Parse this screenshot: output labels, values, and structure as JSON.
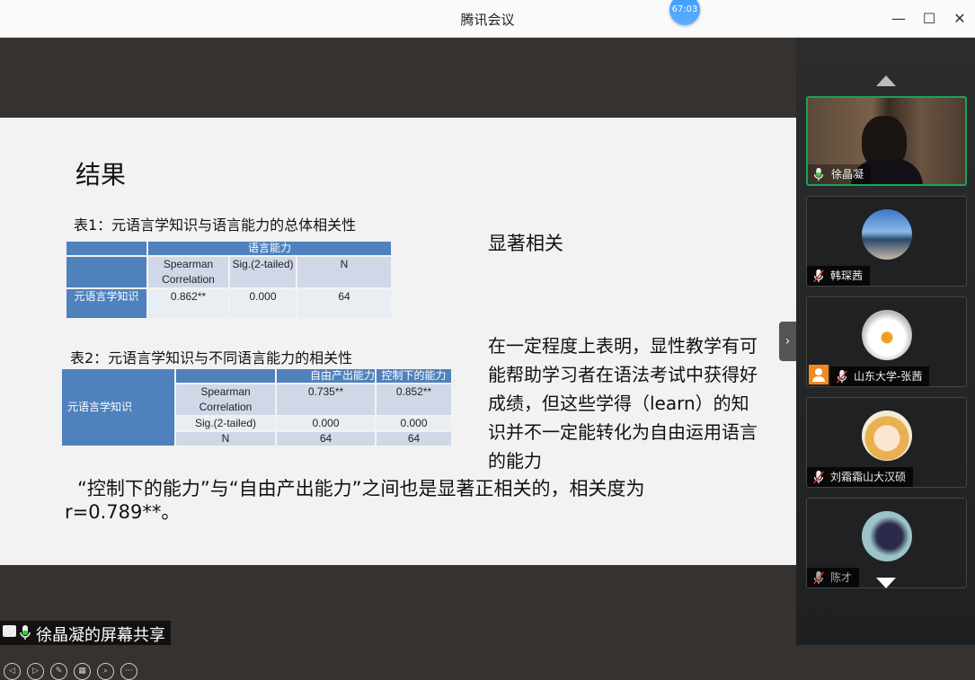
{
  "window": {
    "title": "腾讯会议",
    "timer": "67:03",
    "controls": {
      "minimize": "—",
      "maximize": "☐",
      "close": "✕"
    }
  },
  "slide": {
    "heading": "结果",
    "table1": {
      "caption": "表1：元语言学知识与语言能力的总体相关性",
      "group_header": "语言能力",
      "columns": [
        "Spearman Correlation",
        "Sig.(2-tailed)",
        "N"
      ],
      "row_label": "元语言学知识",
      "values": [
        "0.862**",
        "0.000",
        "64"
      ]
    },
    "table2": {
      "caption": "表2：元语言学知识与不同语言能力的相关性",
      "row_label": "元语言学知识",
      "columns": [
        "自由产出能力",
        "控制下的能力"
      ],
      "rows": [
        {
          "label": "Spearman Correlation",
          "values": [
            "0.735**",
            "0.852**"
          ]
        },
        {
          "label": "Sig.(2-tailed)",
          "values": [
            "0.000",
            "0.000"
          ]
        },
        {
          "label": "N",
          "values": [
            "64",
            "64"
          ]
        }
      ]
    },
    "note1": "显著相关",
    "note2": "在一定程度上表明，显性教学有可能帮助学习者在语法考试中获得好成绩，但这些学得（learn）的知识并不一定能转化为自由运用语言的能力",
    "conclusion_line1": "“控制下的能力”与“自由产出能力”之间也是显著正相关的，相关度为",
    "conclusion_line2": "r=0.789**。"
  },
  "share_label": "徐晶凝的屏幕共享",
  "participants": [
    {
      "name": "徐晶凝",
      "mic": "on",
      "video": true
    },
    {
      "name": "韩琛茜",
      "mic": "muted"
    },
    {
      "name": "山东大学-张茜",
      "mic": "muted"
    },
    {
      "name": "刘霜霜山大汉硕",
      "mic": "muted"
    },
    {
      "name": "陈才",
      "mic": "muted"
    }
  ],
  "colors": {
    "table_header": "#4f81bd",
    "active_border": "#1aa35a",
    "muted": "#e03030"
  }
}
